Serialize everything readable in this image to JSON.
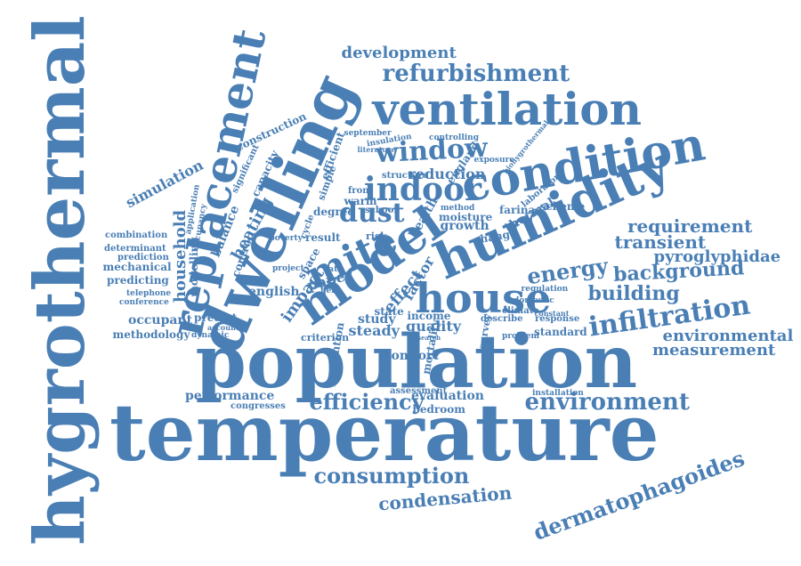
{
  "accent_color": "#4a7fb5",
  "words": [
    {
      "text": "hygrothermal"
    },
    {
      "text": "temperature"
    },
    {
      "text": "population"
    },
    {
      "text": "dwelling"
    },
    {
      "text": "replacement"
    },
    {
      "text": "humidity"
    },
    {
      "text": "ventilation"
    },
    {
      "text": "condition"
    },
    {
      "text": "model"
    },
    {
      "text": "house"
    },
    {
      "text": "mite"
    },
    {
      "text": "indoor"
    },
    {
      "text": "window"
    },
    {
      "text": "dust"
    },
    {
      "text": "infiltration"
    },
    {
      "text": "environment"
    },
    {
      "text": "refurbishment"
    },
    {
      "text": "development"
    },
    {
      "text": "dermatophagoides"
    },
    {
      "text": "consumption"
    },
    {
      "text": "condensation"
    },
    {
      "text": "energy"
    },
    {
      "text": "building"
    },
    {
      "text": "background"
    },
    {
      "text": "requirement"
    },
    {
      "text": "transient"
    },
    {
      "text": "pyroglyphidae"
    },
    {
      "text": "environmental"
    },
    {
      "text": "measurement"
    },
    {
      "text": "efficiency"
    },
    {
      "text": "household"
    },
    {
      "text": "heating"
    },
    {
      "text": "simulation"
    },
    {
      "text": "performance"
    },
    {
      "text": "quality"
    },
    {
      "text": "steady"
    },
    {
      "text": "evaluation"
    },
    {
      "text": "bedroom"
    },
    {
      "text": "standard"
    },
    {
      "text": "reduction"
    },
    {
      "text": "construction"
    },
    {
      "text": "balance"
    },
    {
      "text": "structure"
    },
    {
      "text": "growth"
    },
    {
      "text": "thermal"
    },
    {
      "text": "farinae"
    },
    {
      "text": "england"
    },
    {
      "text": "change"
    },
    {
      "text": "moisture"
    },
    {
      "text": "paper"
    },
    {
      "text": "impact"
    },
    {
      "text": "effect"
    },
    {
      "text": "factor"
    },
    {
      "text": "health"
    },
    {
      "text": "school"
    },
    {
      "text": "degree"
    },
    {
      "text": "warm"
    },
    {
      "text": "front"
    },
    {
      "text": "english"
    },
    {
      "text": "occupant"
    },
    {
      "text": "predict"
    },
    {
      "text": "methodology"
    },
    {
      "text": "combination"
    },
    {
      "text": "determinant"
    },
    {
      "text": "prediction"
    },
    {
      "text": "mechanical"
    },
    {
      "text": "predicting"
    },
    {
      "text": "telephone"
    },
    {
      "text": "conference"
    },
    {
      "text": "congresses"
    },
    {
      "text": "assessment"
    },
    {
      "text": "installation"
    },
    {
      "text": "comfort"
    },
    {
      "text": "study"
    },
    {
      "text": "state"
    },
    {
      "text": "income"
    },
    {
      "text": "mortality"
    },
    {
      "text": "prevention"
    },
    {
      "text": "criterion"
    },
    {
      "text": "dynamic"
    },
    {
      "text": "result"
    },
    {
      "text": "risk"
    },
    {
      "text": "data"
    },
    {
      "text": "space"
    },
    {
      "text": "capacity"
    },
    {
      "text": "significant"
    },
    {
      "text": "control"
    },
    {
      "text": "modelling"
    },
    {
      "text": "application"
    },
    {
      "text": "occupancy"
    },
    {
      "text": "scheme"
    },
    {
      "text": "laboratory"
    },
    {
      "text": "regulation"
    },
    {
      "text": "domestic"
    },
    {
      "text": "climate"
    },
    {
      "text": "problem"
    },
    {
      "text": "response"
    },
    {
      "text": "constant"
    },
    {
      "text": "september"
    },
    {
      "text": "insulation"
    },
    {
      "text": "controlling"
    },
    {
      "text": "exposure"
    },
    {
      "text": "literature"
    },
    {
      "text": "efficient"
    },
    {
      "text": "method"
    },
    {
      "text": "describe"
    },
    {
      "text": "survey"
    },
    {
      "text": "poverty"
    },
    {
      "text": "simple"
    },
    {
      "text": "cycle"
    },
    {
      "text": "project"
    },
    {
      "text": "account"
    },
    {
      "text": "field"
    },
    {
      "text": "research"
    },
    {
      "text": "biohygrothermal"
    }
  ]
}
